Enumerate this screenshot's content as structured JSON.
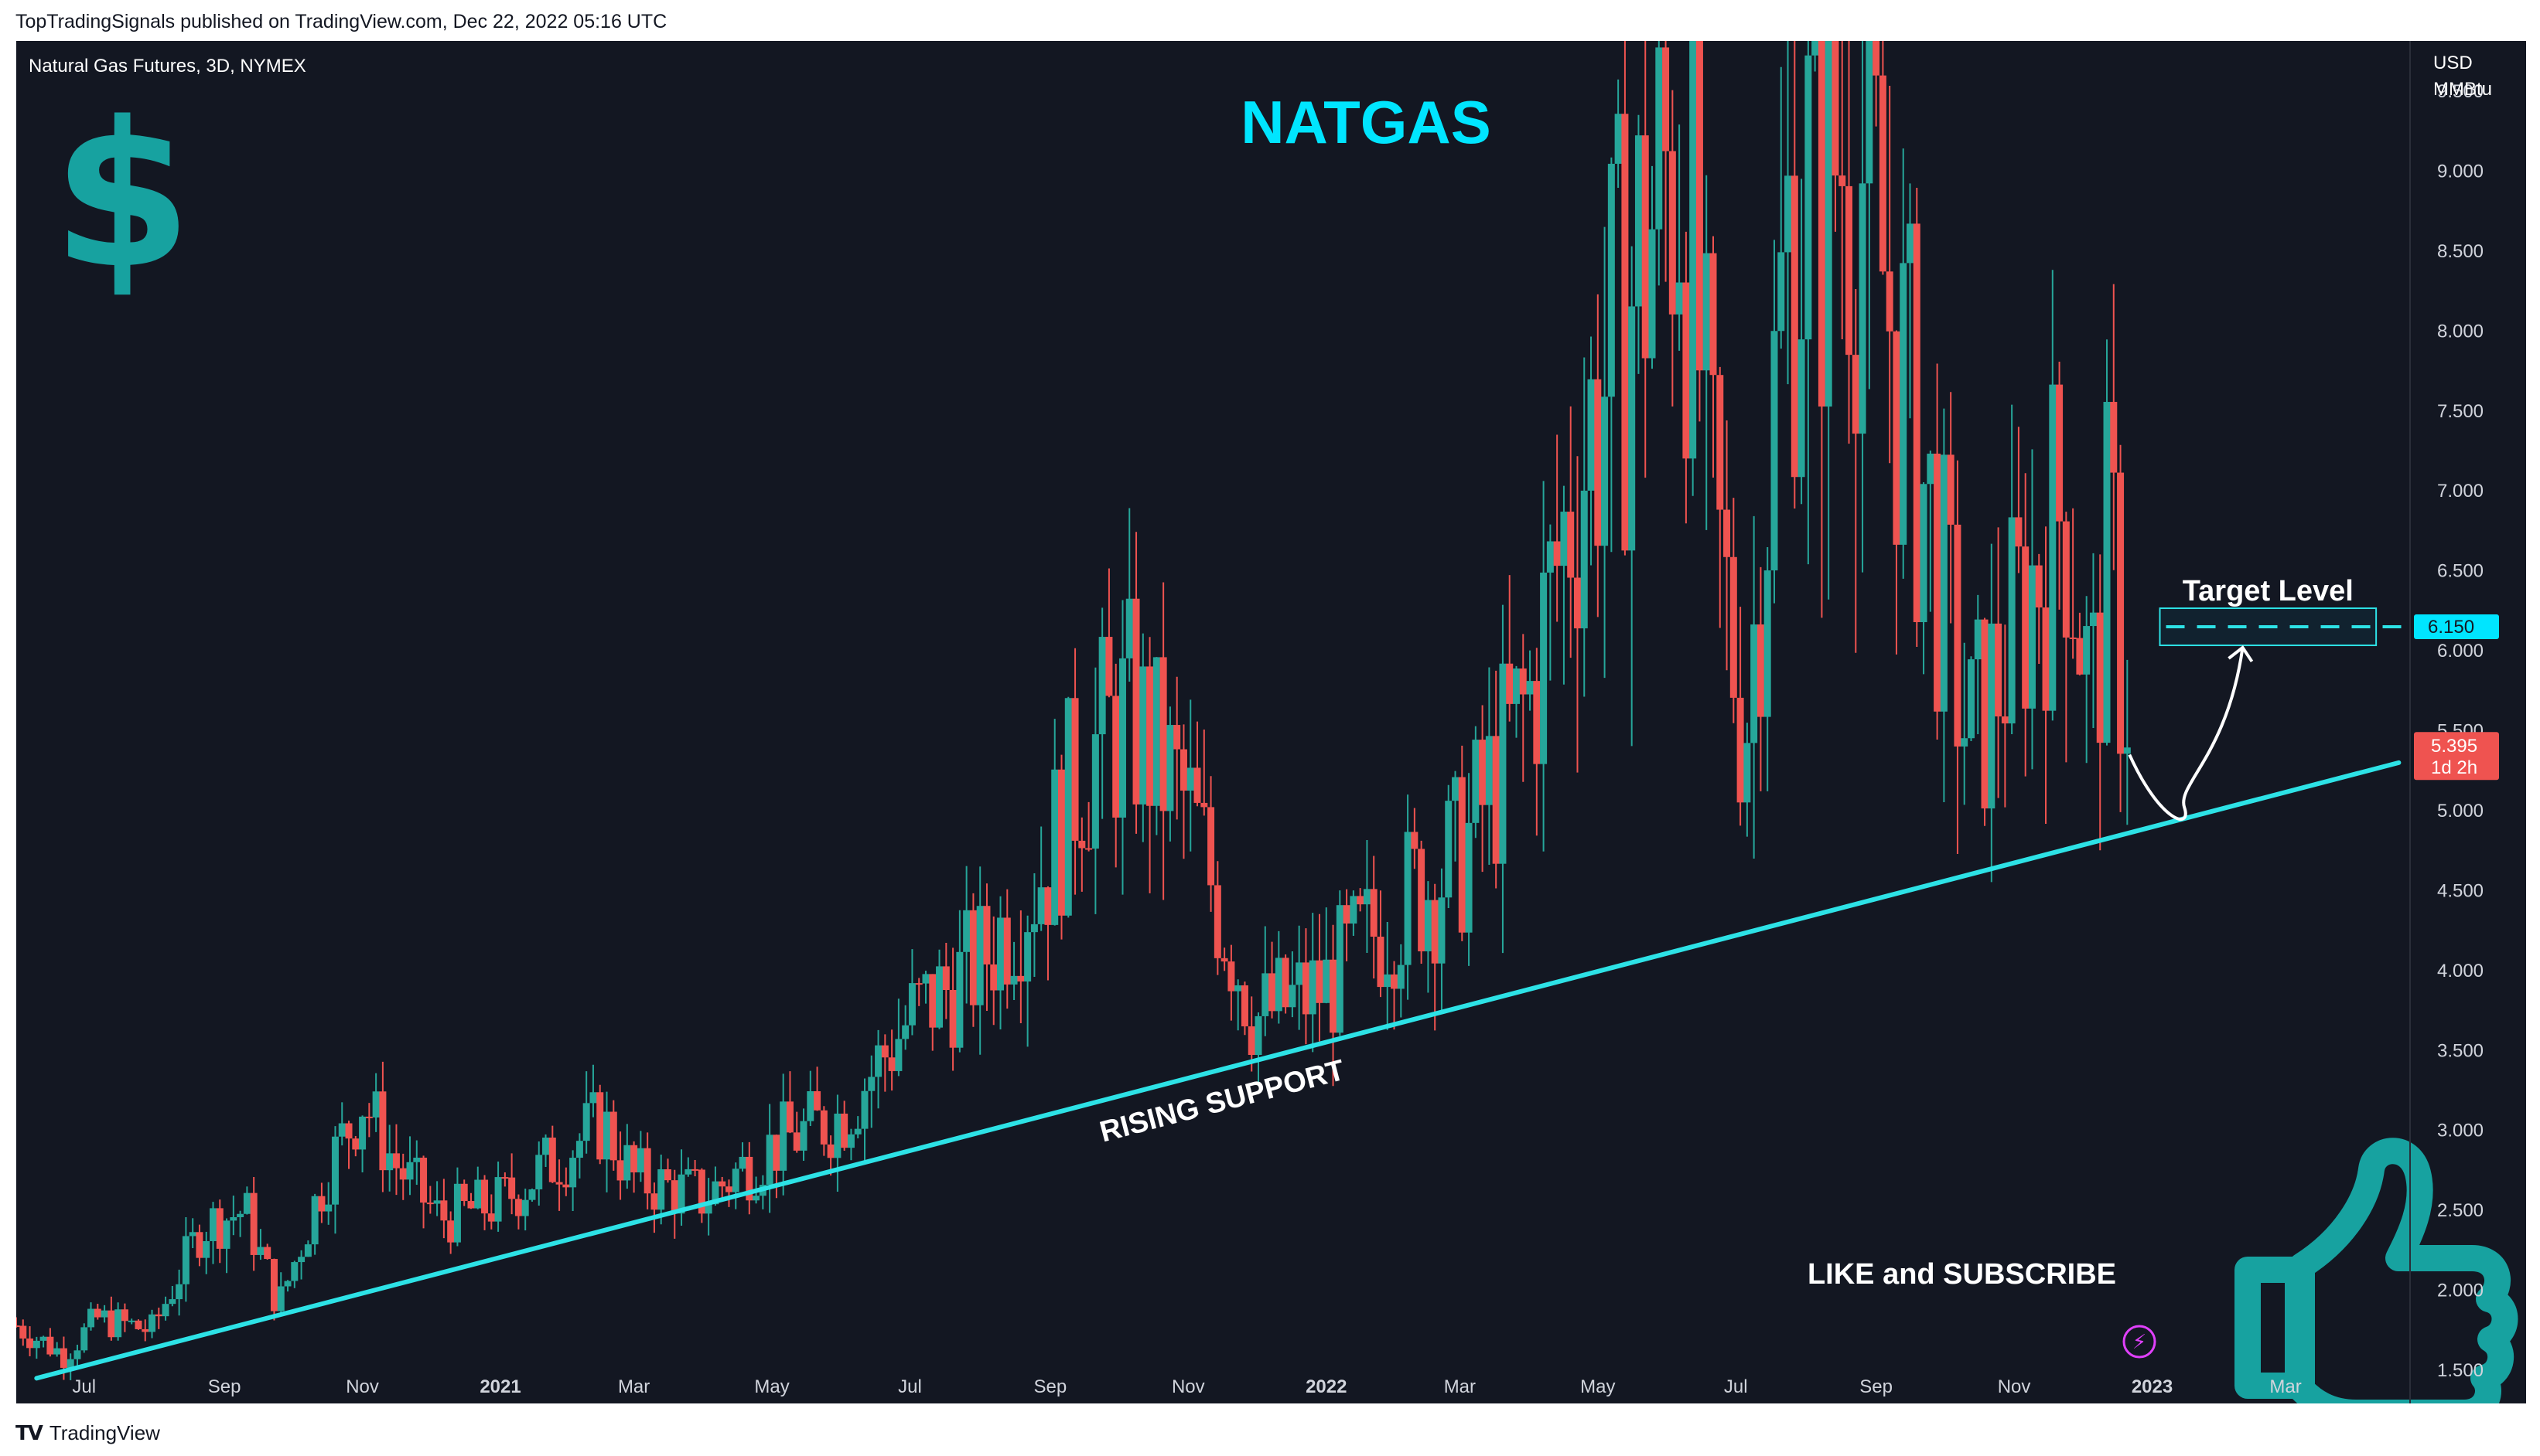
{
  "header": {
    "publisher": "TopTradingSignals published on TradingView.com, Dec 22, 2022 05:16 UTC"
  },
  "chart_title": "NATGAS",
  "symbol_info": "Natural Gas Futures, 3D, NYMEX",
  "axis_unit_top": "USD",
  "axis_unit_bottom": "MMBtu",
  "dollar_icon": "dollar-sign-icon",
  "annotations": {
    "rising_support": "RISING SUPPORT",
    "target_level": "Target Level",
    "like_subscribe": "LIKE and SUBSCRIBE"
  },
  "price_tags": {
    "target": "6.150",
    "last": "5.395",
    "countdown": "1d 2h"
  },
  "footer": {
    "brand": "TradingView",
    "logo": "tradingview-logo-icon"
  },
  "colors": {
    "background": "#131722",
    "up": "#26a69a",
    "down": "#ef5350",
    "support_line": "#2de2e6",
    "title": "#00e5ff",
    "dollar": "#17a2a0",
    "thumb": "#17a2a0"
  },
  "chart_data": {
    "type": "candlestick",
    "title": "NATGAS",
    "ylim": [
      1.3,
      9.5
    ],
    "y_ticks": [
      "1.500",
      "2.000",
      "2.500",
      "3.000",
      "3.500",
      "4.000",
      "4.500",
      "5.000",
      "5.500",
      "6.000",
      "6.500",
      "7.000",
      "7.500",
      "8.000",
      "8.500",
      "9.000",
      "9.500"
    ],
    "x_ticks": [
      "Jul",
      "Sep",
      "Nov",
      "2021",
      "Mar",
      "May",
      "Jul",
      "Sep",
      "Nov",
      "2022",
      "Mar",
      "May",
      "Jul",
      "Sep",
      "Nov",
      "2023",
      "Mar"
    ],
    "x_tick_dates": [
      "2020-07-01",
      "2020-09-01",
      "2020-11-01",
      "2021-01-01",
      "2021-03-01",
      "2021-05-01",
      "2021-07-01",
      "2021-09-01",
      "2021-11-01",
      "2022-01-01",
      "2022-03-01",
      "2022-05-01",
      "2022-07-01",
      "2022-09-01",
      "2022-11-01",
      "2023-01-01",
      "2023-03-01"
    ],
    "x_range": [
      "2020-06-01",
      "2023-04-25"
    ],
    "interval": "3D",
    "anchor_closes": [
      {
        "date": "2020-06-01",
        "close": 1.78
      },
      {
        "date": "2020-06-22",
        "close": 1.6
      },
      {
        "date": "2020-07-07",
        "close": 1.82
      },
      {
        "date": "2020-07-31",
        "close": 1.75
      },
      {
        "date": "2020-08-22",
        "close": 2.4
      },
      {
        "date": "2020-09-10",
        "close": 2.5
      },
      {
        "date": "2020-09-25",
        "close": 1.9
      },
      {
        "date": "2020-10-15",
        "close": 2.7
      },
      {
        "date": "2020-11-01",
        "close": 3.2
      },
      {
        "date": "2020-11-15",
        "close": 2.8
      },
      {
        "date": "2020-12-05",
        "close": 2.45
      },
      {
        "date": "2021-01-01",
        "close": 2.55
      },
      {
        "date": "2021-02-15",
        "close": 3.05
      },
      {
        "date": "2021-03-01",
        "close": 2.7
      },
      {
        "date": "2021-04-01",
        "close": 2.58
      },
      {
        "date": "2021-05-01",
        "close": 2.9
      },
      {
        "date": "2021-06-01",
        "close": 3.1
      },
      {
        "date": "2021-07-01",
        "close": 3.7
      },
      {
        "date": "2021-08-01",
        "close": 4.05
      },
      {
        "date": "2021-08-31",
        "close": 4.7
      },
      {
        "date": "2021-09-15",
        "close": 5.3
      },
      {
        "date": "2021-10-06",
        "close": 5.6
      },
      {
        "date": "2021-11-01",
        "close": 5.0
      },
      {
        "date": "2021-12-01",
        "close": 3.7
      },
      {
        "date": "2022-01-01",
        "close": 3.9
      },
      {
        "date": "2022-02-01",
        "close": 4.4
      },
      {
        "date": "2022-03-01",
        "close": 4.7
      },
      {
        "date": "2022-04-01",
        "close": 5.7
      },
      {
        "date": "2022-04-20",
        "close": 7.0
      },
      {
        "date": "2022-05-15",
        "close": 8.2
      },
      {
        "date": "2022-06-07",
        "close": 9.3
      },
      {
        "date": "2022-06-20",
        "close": 6.9
      },
      {
        "date": "2022-07-05",
        "close": 5.5
      },
      {
        "date": "2022-07-25",
        "close": 8.7
      },
      {
        "date": "2022-08-22",
        "close": 9.3
      },
      {
        "date": "2022-09-10",
        "close": 7.9
      },
      {
        "date": "2022-09-25",
        "close": 6.8
      },
      {
        "date": "2022-10-12",
        "close": 5.4
      },
      {
        "date": "2022-10-24",
        "close": 5.8
      },
      {
        "date": "2022-11-08",
        "close": 6.4
      },
      {
        "date": "2022-11-24",
        "close": 7.0
      },
      {
        "date": "2022-12-05",
        "close": 5.6
      },
      {
        "date": "2022-12-13",
        "close": 6.7
      },
      {
        "date": "2022-12-22",
        "close": 5.4
      }
    ],
    "rising_support_line": [
      {
        "date": "2020-06-10",
        "price": 1.45
      },
      {
        "date": "2023-04-20",
        "price": 5.3
      }
    ],
    "target_level": 6.15,
    "last_price": 5.395
  }
}
